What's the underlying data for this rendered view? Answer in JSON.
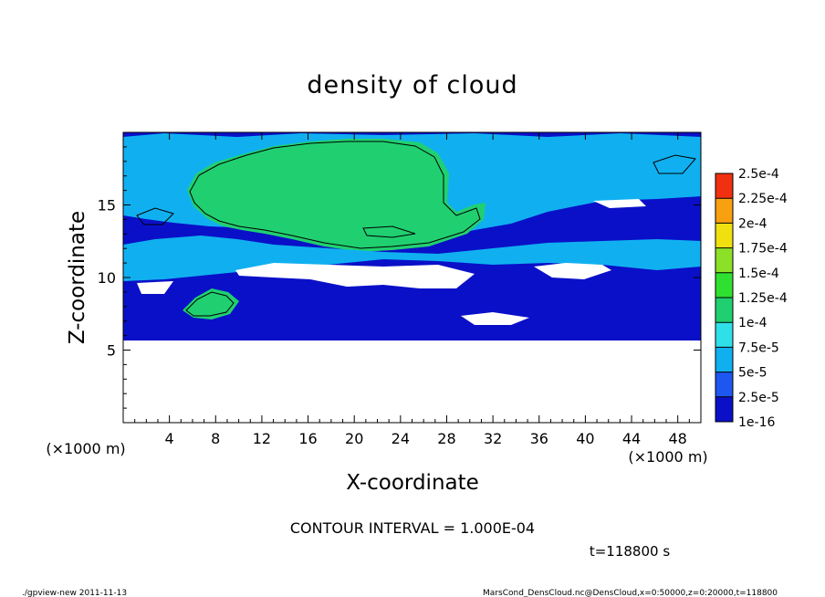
{
  "chart_data": {
    "type": "heatmap",
    "title": "density of cloud",
    "xlabel": "X-coordinate",
    "ylabel": "Z-coordinate",
    "x_unit": "(×1000 m)",
    "y_unit": "(×1000 m)",
    "xlim": [
      0,
      50
    ],
    "ylim": [
      0,
      20
    ],
    "x_ticks": [
      4,
      8,
      12,
      16,
      20,
      24,
      28,
      32,
      36,
      40,
      44,
      48
    ],
    "y_ticks": [
      5,
      10,
      15
    ],
    "contour_note": "CONTOUR INTERVAL = 1.000E-04",
    "time_label": "t=118800 s",
    "colorbar": {
      "labels": [
        "1e-16",
        "2.5e-5",
        "5e-5",
        "7.5e-5",
        "1e-4",
        "1.25e-4",
        "1.5e-4",
        "1.75e-4",
        "2e-4",
        "2.25e-4",
        "2.5e-4"
      ],
      "values": [
        1e-16,
        2.5e-05,
        5e-05,
        7.5e-05,
        0.0001,
        0.000125,
        0.00015,
        0.000175,
        0.0002,
        0.000225,
        0.00025
      ],
      "colors": [
        "#7a16a8",
        "#0a10c8",
        "#1e56f0",
        "#10b0f0",
        "#30e0e8",
        "#20d070",
        "#30e030",
        "#8ce028",
        "#f0e010",
        "#f8a010",
        "#f03010",
        "#f85050",
        "#f89090"
      ]
    },
    "regions": [
      {
        "name": "background",
        "level": 1e-05
      },
      {
        "name": "upper-band",
        "level": 6e-05
      },
      {
        "name": "main-cloud",
        "level": 0.00011
      },
      {
        "name": "middle-band",
        "level": 6e-05
      },
      {
        "name": "lower-band",
        "level": 2e-06
      },
      {
        "name": "left-patch",
        "level": 0.00011
      }
    ]
  },
  "footer": {
    "program": "./gpview-new   2011-11-13",
    "source": "MarsCond_DensCloud.nc@DensCloud,x=0:50000,z=0:20000,t=118800"
  }
}
